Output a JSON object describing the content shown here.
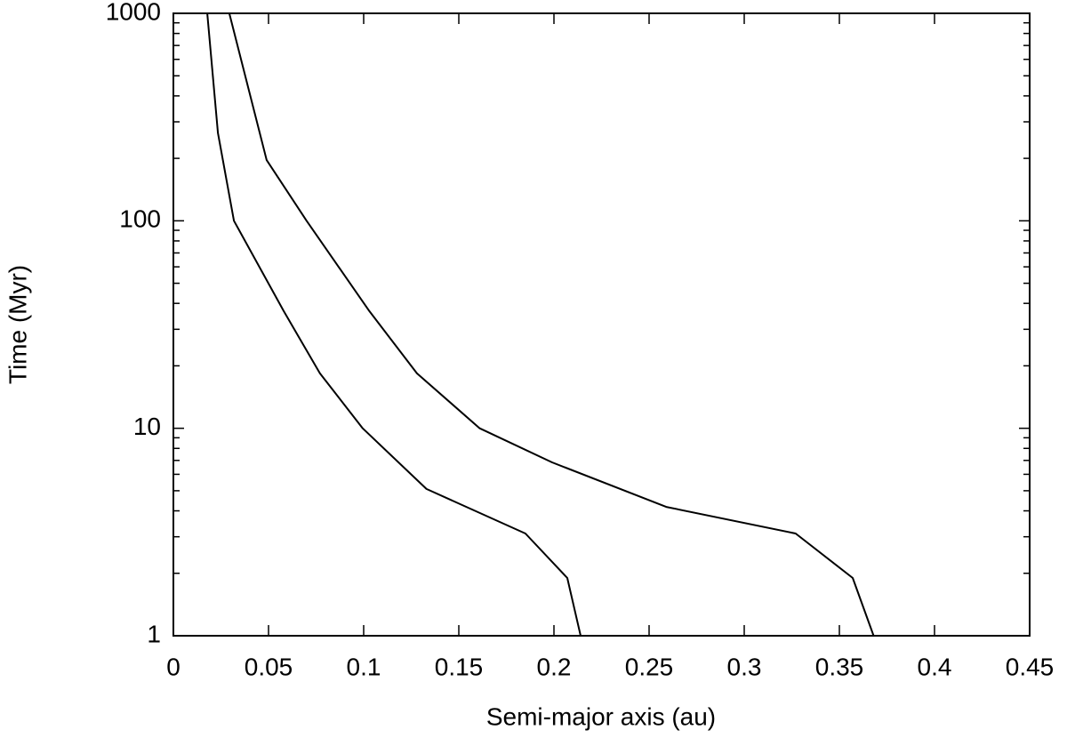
{
  "chart_data": {
    "type": "line",
    "x_label": "Semi-major axis (au)",
    "y_label": "Time (Myr)",
    "xlim": [
      0,
      0.45
    ],
    "xticks": [
      0,
      0.05,
      0.1,
      0.15,
      0.2,
      0.25,
      0.3,
      0.35,
      0.4,
      0.45
    ],
    "ylim": [
      1,
      1000
    ],
    "yticks": [
      1,
      10,
      100,
      1000
    ],
    "y_scale": "log",
    "grid": false,
    "series": [
      {
        "color": "#000000",
        "x": [
          0.0178,
          0.0234,
          0.0318,
          0.058,
          0.077,
          0.0995,
          0.133,
          0.185,
          0.207,
          0.214
        ],
        "values": [
          1000,
          265,
          100,
          36.7,
          18.4,
          10,
          5.1,
          3.11,
          1.9,
          1
        ]
      },
      {
        "color": "#000000",
        "x": [
          0.0294,
          0.049,
          0.07,
          0.103,
          0.128,
          0.161,
          0.199,
          0.259,
          0.327,
          0.357,
          0.368
        ],
        "values": [
          1000,
          196,
          100,
          36.7,
          18.4,
          10,
          6.85,
          4.18,
          3.11,
          1.9,
          1
        ]
      }
    ]
  }
}
